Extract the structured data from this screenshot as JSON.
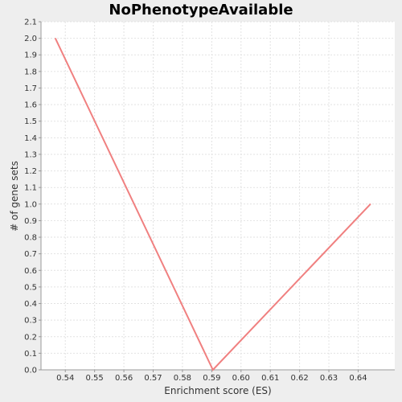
{
  "chart_data": {
    "type": "line",
    "title": "NoPhenotypeAvailable",
    "xlabel": "Enrichment score (ES)",
    "ylabel": "# of gene sets",
    "xlim": [
      0.5317,
      0.6525
    ],
    "ylim": [
      0,
      2.1
    ],
    "xticks": [
      0.54,
      0.55,
      0.56,
      0.57,
      0.58,
      0.59,
      0.6,
      0.61,
      0.62,
      0.63,
      0.64
    ],
    "xtick_labels": [
      "0.54",
      "0.55",
      "0.56",
      "0.57",
      "0.58",
      "0.59",
      "0.60",
      "0.61",
      "0.62",
      "0.63",
      "0.64"
    ],
    "yticks": [
      0.0,
      0.1,
      0.2,
      0.3,
      0.4,
      0.5,
      0.6,
      0.7,
      0.8,
      0.9,
      1.0,
      1.1,
      1.2,
      1.3,
      1.4,
      1.5,
      1.6,
      1.7,
      1.8,
      1.9,
      2.0,
      2.1
    ],
    "ytick_labels": [
      "0.0",
      "0.1",
      "0.2",
      "0.3",
      "0.4",
      "0.5",
      "0.6",
      "0.7",
      "0.8",
      "0.9",
      "1.0",
      "1.1",
      "1.2",
      "1.3",
      "1.4",
      "1.5",
      "1.6",
      "1.7",
      "1.8",
      "1.9",
      "2.0",
      "2.1"
    ],
    "grid": true,
    "series": [
      {
        "x": [
          0.5366,
          0.5904,
          0.6442
        ],
        "y": [
          2.0,
          0.0,
          1.0
        ],
        "color": "#f08080"
      }
    ],
    "colors": {
      "background": "#eeeeee",
      "plot_background": "#ffffff",
      "grid": "#e2e2e2",
      "axis": "#999999"
    }
  }
}
